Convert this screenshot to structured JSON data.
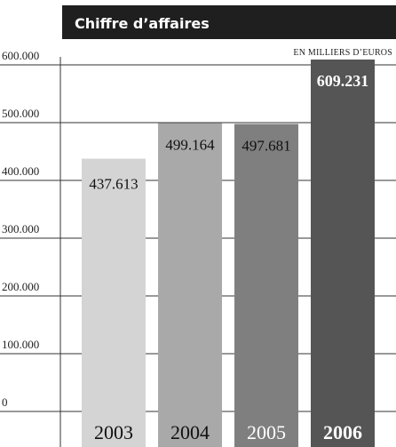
{
  "header": {
    "title": "Chiffre d’affaires",
    "unit": "EN MILLIERS D’EUROS"
  },
  "colors": {
    "header_bg": "#1f1f1f",
    "gridline": "#333333",
    "bars": [
      "#d4d4d4",
      "#a9a9a9",
      "#7f7f7f",
      "#555555"
    ]
  },
  "chart_data": {
    "type": "bar",
    "title": "Chiffre d’affaires",
    "unit": "EN MILLIERS D’EUROS",
    "xlabel": "",
    "ylabel": "",
    "categories": [
      "2003",
      "2004",
      "2005",
      "2006"
    ],
    "values": [
      437613,
      499164,
      497681,
      609231
    ],
    "value_labels": [
      "437.613",
      "499.164",
      "497.681",
      "609.231"
    ],
    "y_ticks": [
      0,
      100000,
      200000,
      300000,
      400000,
      500000,
      600000
    ],
    "y_tick_labels": [
      "0",
      "100.000",
      "200.000",
      "300.000",
      "400.000",
      "500.000",
      "600.000"
    ],
    "ylim": [
      0,
      600000
    ],
    "grid": true,
    "legend": "none",
    "highlight_category": "2006"
  }
}
